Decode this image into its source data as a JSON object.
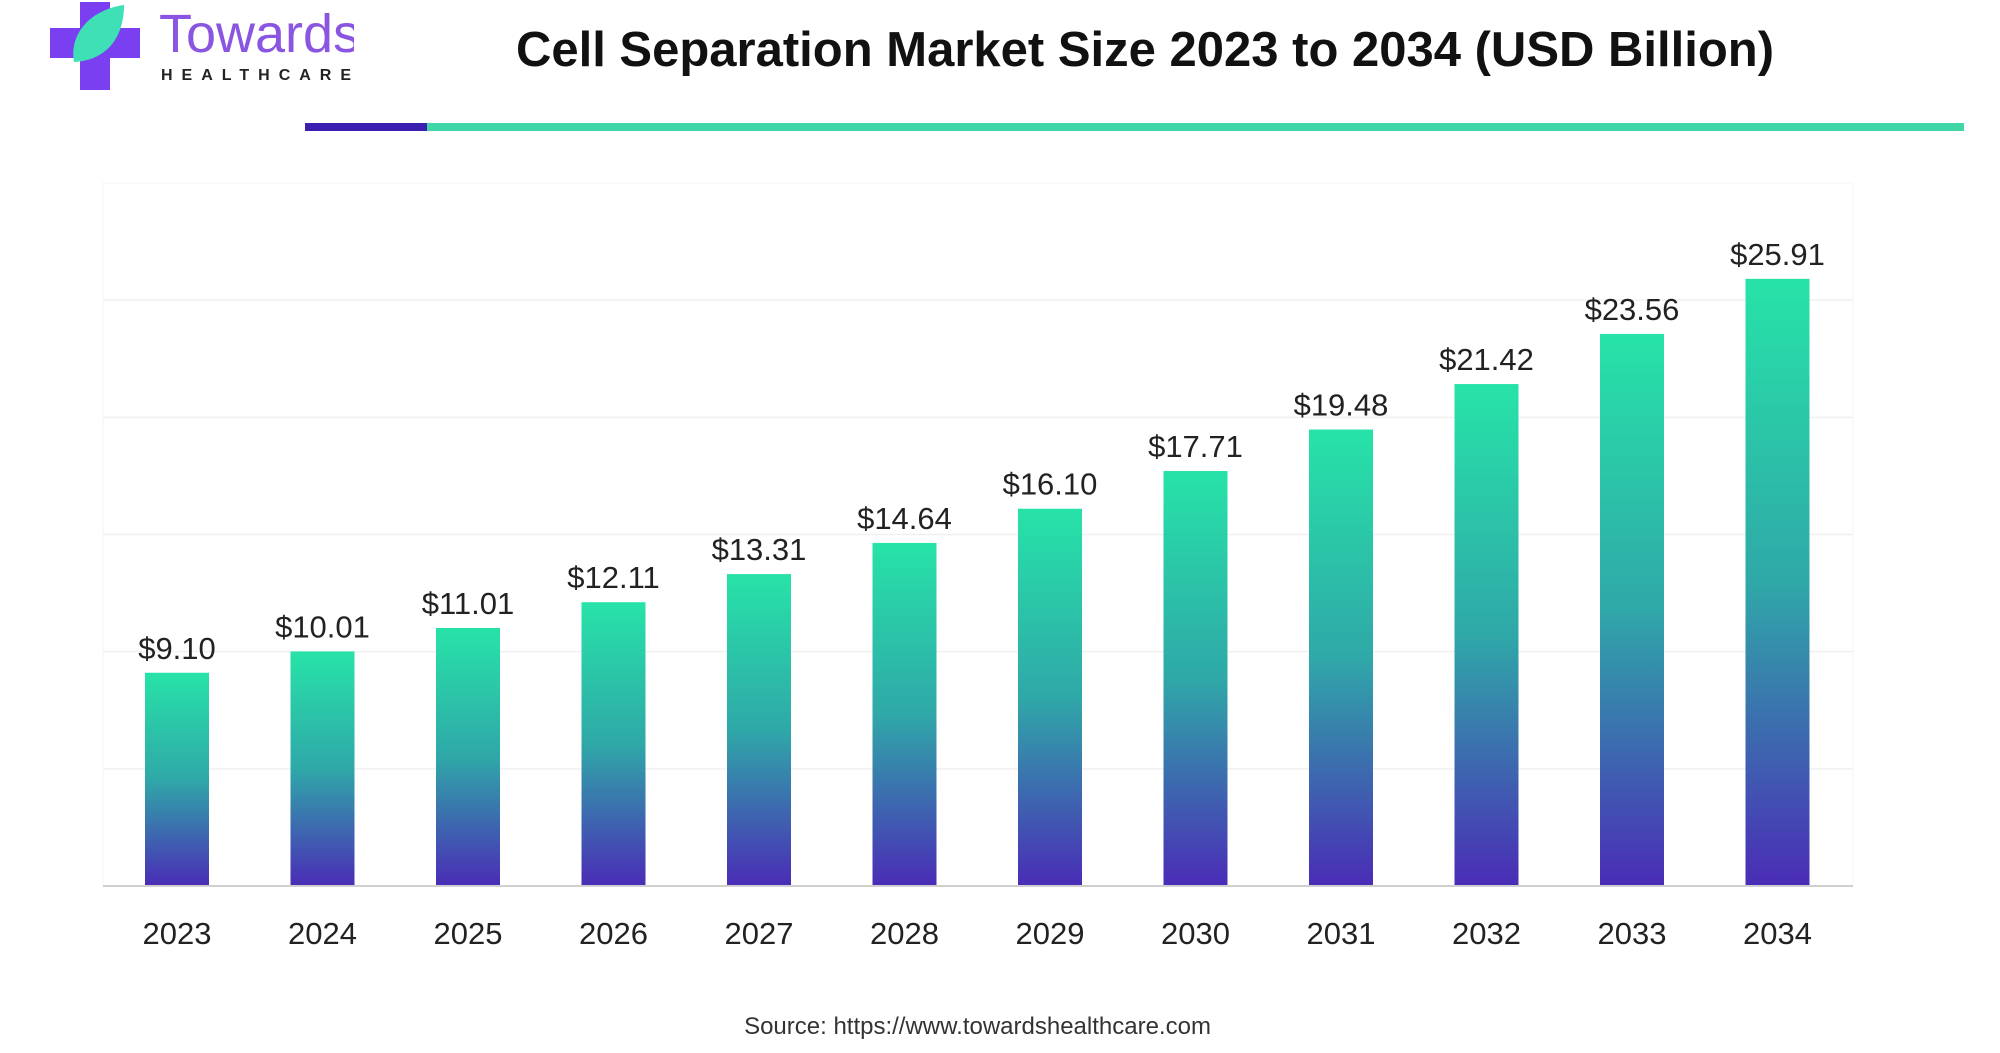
{
  "logo": {
    "brand": "Towards",
    "sub": "HEALTHCARE"
  },
  "title": "Cell Separation Market Size 2023 to 2034 (USD Billion)",
  "source": "Source: https://www.towardshealthcare.com",
  "colors": {
    "accent_purple": "#3a1fb0",
    "accent_teal": "#3fd6a8",
    "bar_top": "#27e3a8",
    "bar_bottom": "#4a2cb6"
  },
  "chart_data": {
    "type": "bar",
    "title": "Cell Separation Market Size 2023 to 2034 (USD Billion)",
    "xlabel": "",
    "ylabel": "",
    "categories": [
      "2023",
      "2024",
      "2025",
      "2026",
      "2027",
      "2028",
      "2029",
      "2030",
      "2031",
      "2032",
      "2033",
      "2034"
    ],
    "values": [
      9.1,
      10.01,
      11.01,
      12.11,
      13.31,
      14.64,
      16.1,
      17.71,
      19.48,
      21.42,
      23.56,
      25.91
    ],
    "data_labels": [
      "$9.10",
      "$10.01",
      "$11.01",
      "$12.11",
      "$13.31",
      "$14.64",
      "$16.10",
      "$17.71",
      "$19.48",
      "$21.42",
      "$23.56",
      "$25.91"
    ],
    "ylim": [
      0,
      30
    ],
    "gridlines": [
      5,
      10,
      15,
      20,
      25
    ],
    "grid": true,
    "y_axis_visible": false,
    "legend": "none"
  }
}
